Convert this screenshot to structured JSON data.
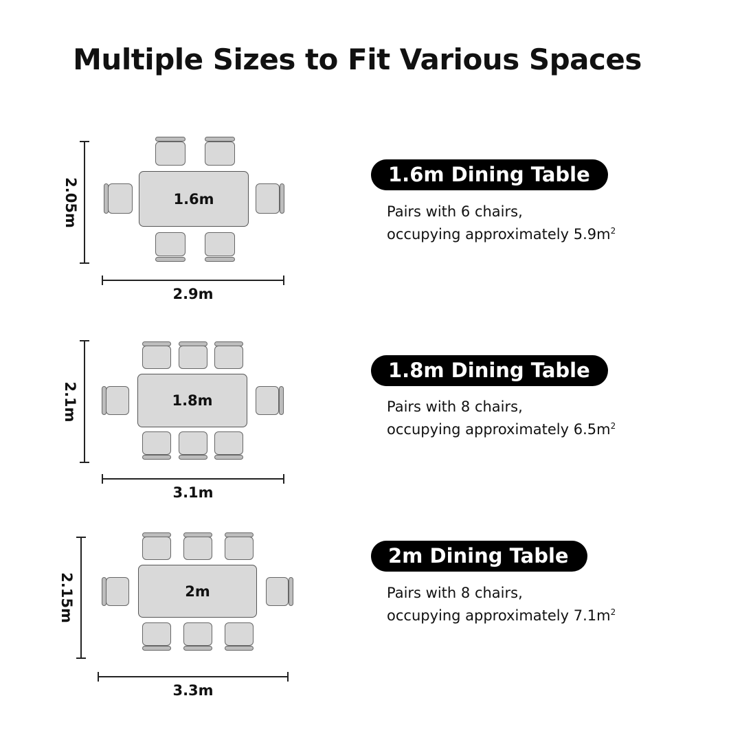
{
  "title": "Multiple Sizes to Fit Various Spaces",
  "accent_color": "#000000",
  "table_fill": "#d9d9d9",
  "options": [
    {
      "table_label": "1.6m",
      "depth_label": "2.05m",
      "width_label": "2.9m",
      "heading": "1.6m Dining Table",
      "desc_line1": "Pairs with 6 chairs,",
      "desc_line2": "occupying approximately 5.9m",
      "unit_exp": "2",
      "chairs": 6
    },
    {
      "table_label": "1.8m",
      "depth_label": "2.1m",
      "width_label": "3.1m",
      "heading": "1.8m Dining Table",
      "desc_line1": "Pairs with 8 chairs,",
      "desc_line2": "occupying approximately 6.5m",
      "unit_exp": "2",
      "chairs": 8
    },
    {
      "table_label": "2m",
      "depth_label": "2.15m",
      "width_label": "3.3m",
      "heading": "2m Dining Table",
      "desc_line1": "Pairs with 8 chairs,",
      "desc_line2": "occupying approximately 7.1m",
      "unit_exp": "2",
      "chairs": 8
    }
  ]
}
